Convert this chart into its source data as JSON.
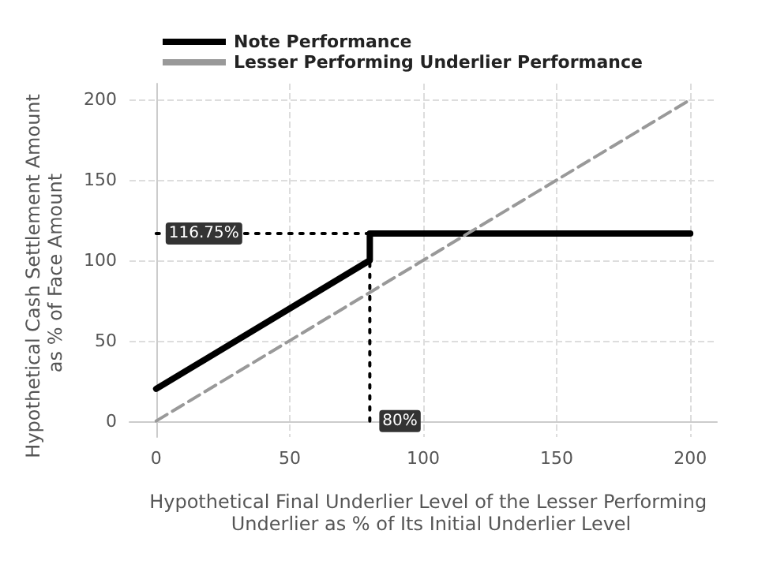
{
  "chart_data": {
    "type": "line",
    "xlabel": "Hypothetical Final Underlier Level of the Lesser Performing Underlier as % of Its Initial Underlier Level",
    "ylabel": "Hypothetical Cash Settlement Amount as % of Face Amount",
    "xlim": [
      -10,
      210
    ],
    "ylim": [
      -10,
      210
    ],
    "xticks": [
      0,
      50,
      100,
      150,
      200
    ],
    "yticks": [
      0,
      50,
      100,
      150,
      200
    ],
    "grid": true,
    "legend": "top left",
    "marker": "none",
    "series": [
      {
        "name": "Note Performance",
        "color": "#000000",
        "x": [
          0,
          80,
          80,
          200
        ],
        "values": [
          20,
          100,
          116.75,
          116.75
        ],
        "line_style": "solid"
      },
      {
        "name": "Lesser Performing Underlier Performance",
        "color": "#999999",
        "x": [
          0,
          200
        ],
        "values": [
          0,
          200
        ],
        "line_style": "dashed"
      },
      {
        "color": "#000000",
        "x": [
          0,
          80
        ],
        "values": [
          116.75,
          116.75
        ],
        "line_style": "dotted"
      },
      {
        "color": "#000000",
        "x": [
          80,
          80
        ],
        "values": [
          0,
          116.75
        ],
        "line_style": "dotted"
      }
    ],
    "annotations": [
      {
        "text": "116.75%",
        "x": 0,
        "y": 116.75
      },
      {
        "text": "80%",
        "x": 80,
        "y": 0
      }
    ]
  }
}
